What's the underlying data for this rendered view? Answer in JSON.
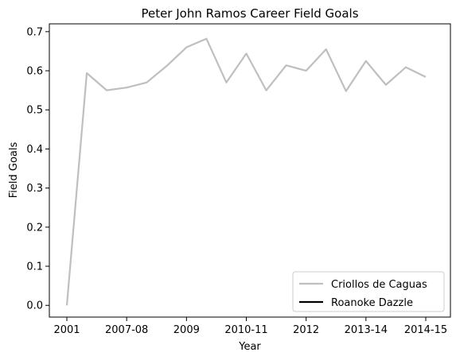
{
  "chart_data": {
    "type": "line",
    "title": "Peter John Ramos Career Field Goals",
    "xlabel": "Year",
    "ylabel": "Field Goals",
    "x_tick_labels": [
      "2001",
      "2007-08",
      "2009",
      "2010-11",
      "2012",
      "2013-14",
      "2014-15"
    ],
    "y_ticks": [
      "0.0",
      "0.1",
      "0.2",
      "0.3",
      "0.4",
      "0.5",
      "0.6",
      "0.7"
    ],
    "ylim": [
      -0.03,
      0.72
    ],
    "grid": false,
    "legend_position": "lower-right",
    "series": [
      {
        "name": "Criollos de Caguas",
        "color": "#bfbfbf",
        "values": [
          0.0,
          0.594,
          0.55,
          0.557,
          0.57,
          0.612,
          0.66,
          0.682,
          0.57,
          0.644,
          0.55,
          0.614,
          0.6,
          0.655,
          0.548,
          0.625,
          0.564,
          0.609,
          0.584
        ]
      },
      {
        "name": "Roanoke Dazzle",
        "color": "#000000",
        "values": []
      }
    ]
  }
}
